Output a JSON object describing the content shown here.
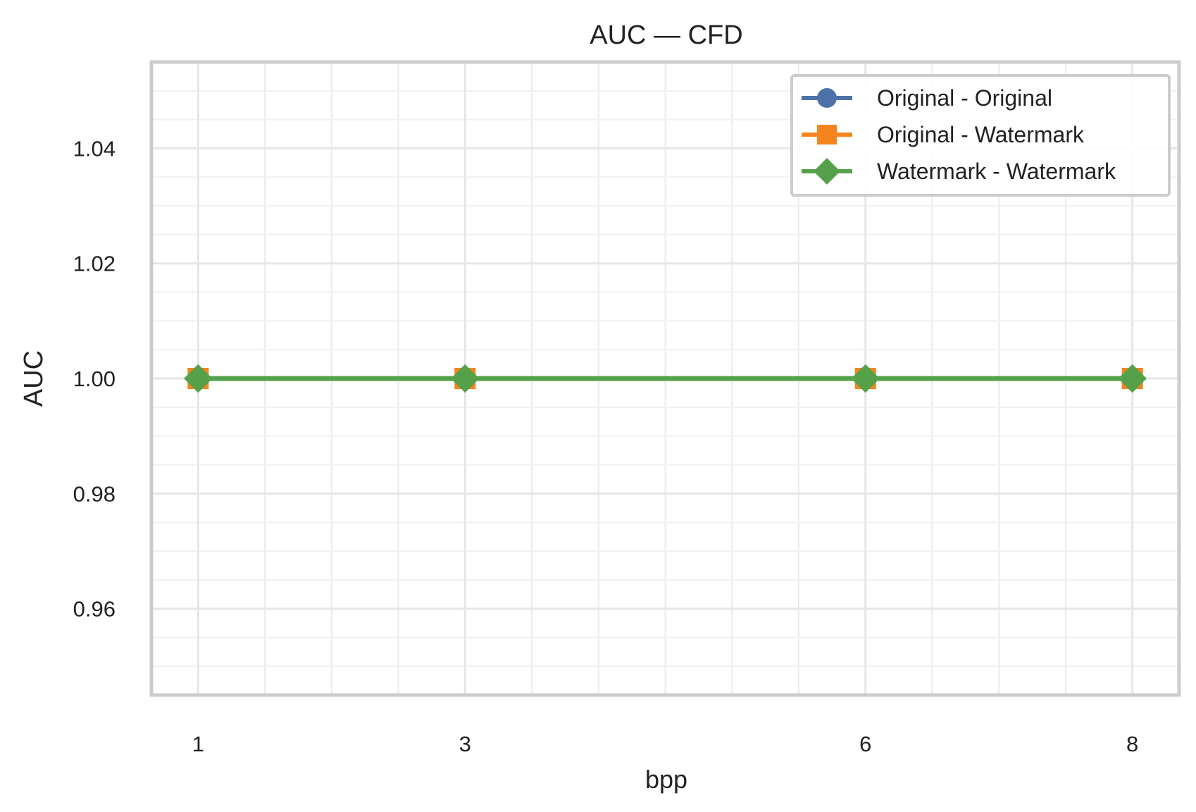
{
  "chart_data": {
    "type": "line",
    "title": "AUC — CFD",
    "xlabel": "bpp",
    "ylabel": "AUC",
    "x": [
      1,
      3,
      6,
      8
    ],
    "x_ticks": [
      "1",
      "3",
      "6",
      "8"
    ],
    "y_ticks": [
      "0.96",
      "0.98",
      "1.00",
      "1.02",
      "1.04"
    ],
    "xlim": [
      0.65,
      8.35
    ],
    "ylim": [
      0.945,
      1.055
    ],
    "grid": true,
    "legend_position": "top-right",
    "series": [
      {
        "name": "Original - Original",
        "values": [
          1.0,
          1.0,
          1.0,
          1.0
        ],
        "color": "#4c72a8",
        "marker": "circle"
      },
      {
        "name": "Original - Watermark",
        "values": [
          1.0,
          1.0,
          1.0,
          1.0
        ],
        "color": "#f5841f",
        "marker": "square"
      },
      {
        "name": "Watermark - Watermark",
        "values": [
          1.0,
          1.0,
          1.0,
          1.0
        ],
        "color": "#55a14a",
        "marker": "diamond"
      }
    ]
  }
}
